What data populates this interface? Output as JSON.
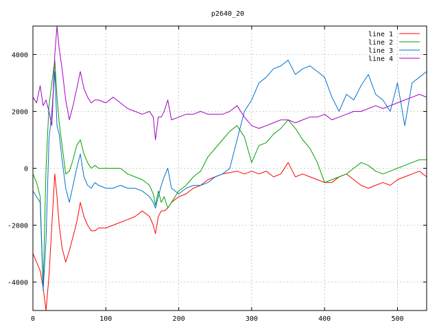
{
  "chart_data": {
    "type": "line",
    "title": "p2640_20",
    "xlim": [
      0,
      540
    ],
    "ylim": [
      -5000,
      5000
    ],
    "xticks": [
      0,
      100,
      200,
      300,
      400,
      500
    ],
    "yticks": [
      -4000,
      -2000,
      0,
      2000,
      4000
    ],
    "grid": true,
    "legend_position": "top-right",
    "series": [
      {
        "name": "line 1",
        "color": "#ff0000",
        "x": [
          0,
          5,
          10,
          14,
          18,
          22,
          26,
          30,
          33,
          36,
          40,
          45,
          50,
          55,
          60,
          65,
          70,
          75,
          80,
          85,
          90,
          100,
          110,
          120,
          130,
          140,
          150,
          160,
          165,
          168,
          172,
          176,
          180,
          185,
          190,
          200,
          210,
          220,
          230,
          240,
          250,
          260,
          270,
          280,
          290,
          300,
          310,
          320,
          330,
          340,
          350,
          360,
          370,
          380,
          390,
          400,
          410,
          420,
          430,
          440,
          450,
          460,
          470,
          480,
          490,
          500,
          510,
          520,
          530,
          540
        ],
        "y": [
          -3000,
          -3300,
          -3600,
          -4200,
          -5000,
          -3800,
          -2000,
          -200,
          -1000,
          -2000,
          -2800,
          -3300,
          -2900,
          -2400,
          -1900,
          -1200,
          -1700,
          -2000,
          -2200,
          -2200,
          -2100,
          -2100,
          -2000,
          -1900,
          -1800,
          -1700,
          -1500,
          -1700,
          -2000,
          -2300,
          -1700,
          -1500,
          -1500,
          -1400,
          -1200,
          -1000,
          -900,
          -700,
          -600,
          -400,
          -300,
          -200,
          -150,
          -100,
          -200,
          -100,
          -200,
          -100,
          -300,
          -200,
          200,
          -300,
          -200,
          -300,
          -400,
          -500,
          -500,
          -300,
          -200,
          -400,
          -600,
          -700,
          -600,
          -500,
          -600,
          -400,
          -300,
          -200,
          -100,
          -300
        ]
      },
      {
        "name": "line 2",
        "color": "#00a000",
        "x": [
          0,
          5,
          10,
          14,
          18,
          22,
          26,
          30,
          33,
          36,
          40,
          45,
          50,
          55,
          60,
          65,
          70,
          75,
          80,
          85,
          90,
          100,
          110,
          120,
          130,
          140,
          150,
          160,
          165,
          168,
          172,
          176,
          180,
          185,
          190,
          200,
          210,
          220,
          230,
          240,
          250,
          260,
          270,
          280,
          290,
          300,
          310,
          320,
          330,
          340,
          350,
          360,
          370,
          380,
          390,
          400,
          410,
          420,
          430,
          440,
          450,
          460,
          470,
          480,
          490,
          500,
          510,
          520,
          530,
          540
        ],
        "y": [
          -200,
          -500,
          -1000,
          -4200,
          0,
          2200,
          3000,
          3800,
          2500,
          1600,
          800,
          -200,
          -100,
          300,
          800,
          1000,
          500,
          200,
          0,
          100,
          0,
          0,
          0,
          0,
          -200,
          -300,
          -400,
          -600,
          -900,
          -1300,
          -800,
          -1200,
          -1000,
          -1400,
          -1200,
          -800,
          -600,
          -300,
          -100,
          400,
          700,
          1000,
          1300,
          1500,
          1100,
          200,
          800,
          900,
          1200,
          1400,
          1700,
          1400,
          1000,
          700,
          200,
          -500,
          -400,
          -300,
          -200,
          0,
          200,
          100,
          -100,
          -200,
          -100,
          0,
          100,
          200,
          300,
          300
        ]
      },
      {
        "name": "line 3",
        "color": "#0070d0",
        "x": [
          0,
          5,
          10,
          14,
          18,
          22,
          26,
          30,
          33,
          36,
          40,
          45,
          50,
          55,
          60,
          65,
          70,
          75,
          80,
          85,
          90,
          100,
          110,
          120,
          130,
          140,
          150,
          160,
          165,
          168,
          172,
          176,
          180,
          185,
          190,
          200,
          210,
          220,
          230,
          240,
          250,
          260,
          270,
          280,
          290,
          300,
          310,
          320,
          330,
          340,
          350,
          360,
          370,
          380,
          390,
          400,
          410,
          420,
          430,
          440,
          450,
          460,
          470,
          480,
          490,
          500,
          510,
          520,
          530,
          540
        ],
        "y": [
          -800,
          -1000,
          -1200,
          -4300,
          -2500,
          1000,
          2000,
          3400,
          1500,
          1200,
          300,
          -700,
          -1200,
          -600,
          0,
          500,
          -300,
          -600,
          -700,
          -500,
          -600,
          -700,
          -700,
          -600,
          -700,
          -700,
          -800,
          -1000,
          -1200,
          -1400,
          -1000,
          -600,
          -300,
          0,
          -700,
          -900,
          -700,
          -600,
          -600,
          -500,
          -300,
          -200,
          0,
          1000,
          2000,
          2400,
          3000,
          3200,
          3500,
          3600,
          3800,
          3300,
          3500,
          3600,
          3400,
          3200,
          2500,
          2000,
          2600,
          2400,
          2900,
          3300,
          2600,
          2400,
          2000,
          3000,
          1500,
          3000,
          3200,
          3400
        ]
      },
      {
        "name": "line 4",
        "color": "#a000c0",
        "x": [
          0,
          5,
          10,
          14,
          18,
          22,
          26,
          30,
          33,
          36,
          40,
          45,
          50,
          55,
          60,
          65,
          70,
          75,
          80,
          85,
          90,
          100,
          110,
          120,
          130,
          140,
          150,
          160,
          165,
          168,
          172,
          176,
          180,
          185,
          190,
          200,
          210,
          220,
          230,
          240,
          250,
          260,
          270,
          280,
          290,
          300,
          310,
          320,
          330,
          340,
          350,
          360,
          370,
          380,
          390,
          400,
          410,
          420,
          430,
          440,
          450,
          460,
          470,
          480,
          490,
          500,
          510,
          520,
          530,
          540
        ],
        "y": [
          2500,
          2300,
          2900,
          2200,
          2400,
          2000,
          1500,
          4000,
          5000,
          4200,
          3500,
          2400,
          1700,
          2200,
          2800,
          3400,
          2800,
          2500,
          2300,
          2400,
          2400,
          2300,
          2500,
          2300,
          2100,
          2000,
          1900,
          2000,
          1800,
          1000,
          1800,
          1800,
          2000,
          2400,
          1700,
          1800,
          1900,
          1900,
          2000,
          1900,
          1900,
          1900,
          2000,
          2200,
          1800,
          1500,
          1400,
          1500,
          1600,
          1700,
          1700,
          1600,
          1700,
          1800,
          1800,
          1900,
          1700,
          1800,
          1900,
          2000,
          2000,
          2100,
          2200,
          2100,
          2200,
          2300,
          2400,
          2500,
          2600,
          2500
        ]
      }
    ]
  }
}
